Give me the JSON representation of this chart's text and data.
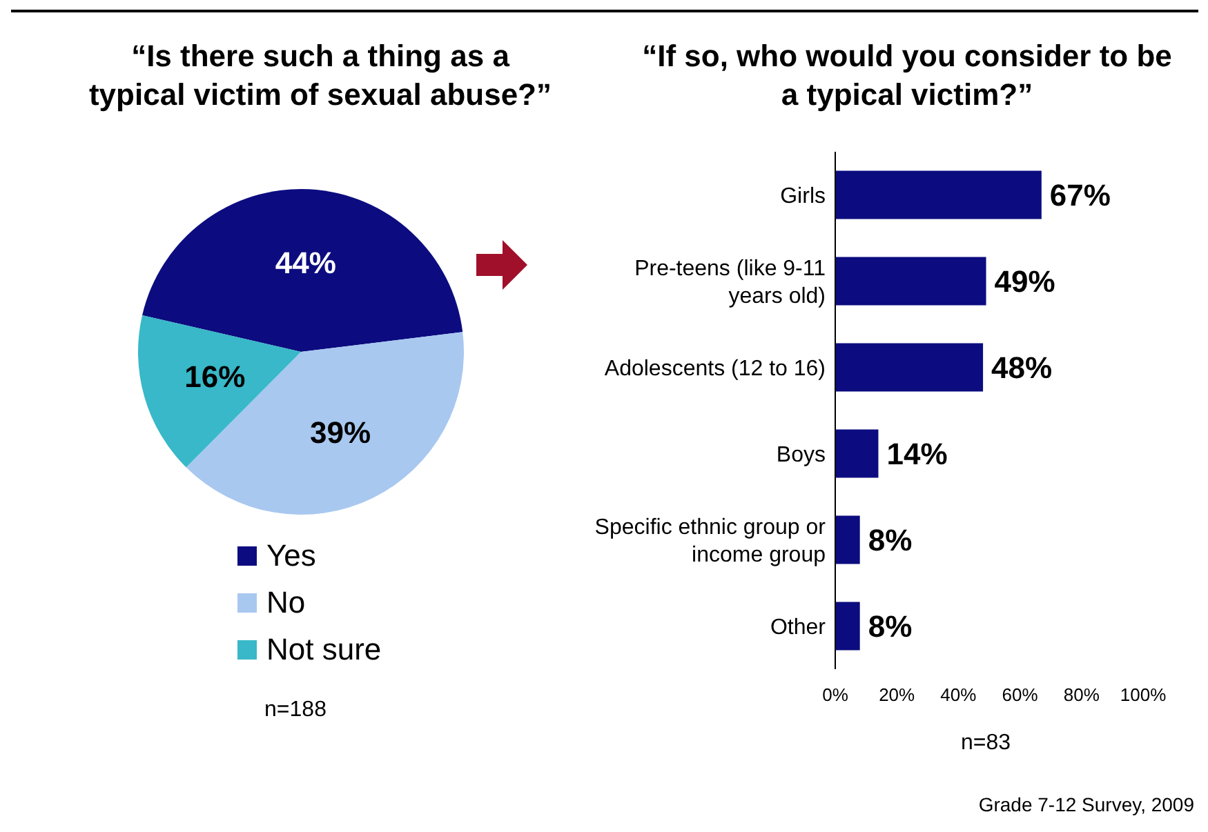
{
  "chart_data": [
    {
      "type": "pie",
      "title": "“Is there such a thing as a typical victim of sexual abuse?”",
      "categories": [
        "Yes",
        "No",
        "Not sure"
      ],
      "values": [
        44,
        39,
        16
      ],
      "value_labels": [
        "44%",
        "39%",
        "16%"
      ],
      "colors": [
        "#0c0c80",
        "#a8c8f0",
        "#38b8c8"
      ],
      "legend": "bottom",
      "annotations": [
        "n=188"
      ]
    },
    {
      "type": "bar",
      "orientation": "horizontal",
      "title": "“If so, who would you consider to be a typical victim?”",
      "categories": [
        "Girls",
        "Pre-teens (like 9-11 years old)",
        "Adolescents (12 to 16)",
        "Boys",
        "Specific ethnic group or income group",
        "Other"
      ],
      "values": [
        67,
        49,
        48,
        14,
        8,
        8
      ],
      "value_labels": [
        "67%",
        "49%",
        "48%",
        "14%",
        "8%",
        "8%"
      ],
      "color": "#0c0c80",
      "xlim": [
        0,
        100
      ],
      "xticks": [
        {
          "value": 0,
          "label": "0%"
        },
        {
          "value": 20,
          "label": "20%"
        },
        {
          "value": 40,
          "label": "40%"
        },
        {
          "value": 60,
          "label": "60%"
        },
        {
          "value": 80,
          "label": "80%"
        },
        {
          "value": 100,
          "label": "100%"
        }
      ],
      "grid": false,
      "annotations": [
        "n=83",
        "Grade 7-12 Survey, 2009"
      ]
    }
  ]
}
